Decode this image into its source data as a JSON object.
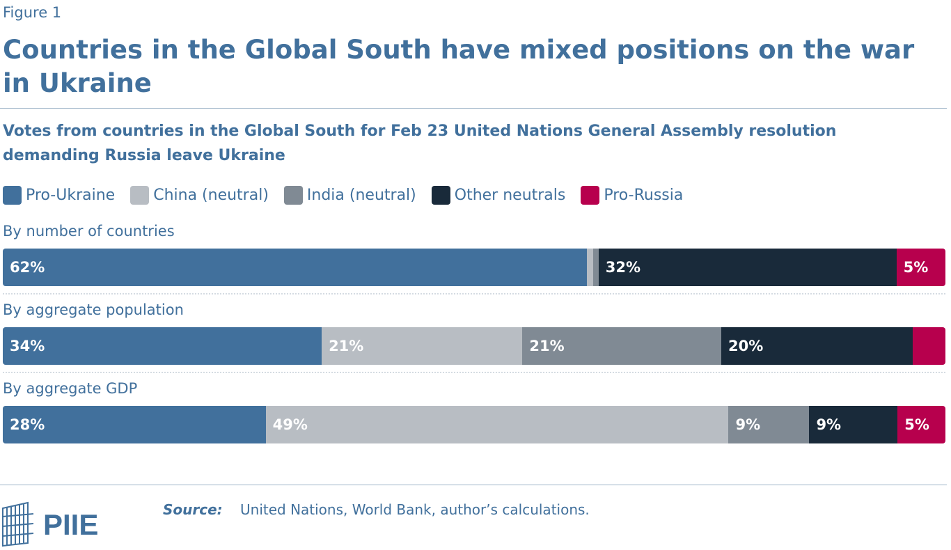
{
  "figure_label": "Figure 1",
  "chart_data": {
    "type": "bar",
    "orientation": "horizontal-stacked-100",
    "title": "Countries in the Global South have mixed positions on the war in Ukraine",
    "subtitle": "Votes from countries in the Global South for Feb 23 United Nations General Assembly resolution demanding Russia leave Ukraine",
    "legend_position": "top-left",
    "grid": false,
    "xlim": [
      0,
      100
    ],
    "categories": [
      "By number of countries",
      "By aggregate population",
      "By aggregate GDP"
    ],
    "series": [
      {
        "name": "Pro-Ukraine",
        "color": "#41709c",
        "values": [
          62,
          34,
          28
        ],
        "labels": [
          "62%",
          "34%",
          "28%"
        ]
      },
      {
        "name": "China (neutral)",
        "color": "#b8bdc3",
        "values": [
          0.6,
          21.4,
          49.3
        ],
        "labels": [
          "",
          "21%",
          "49%"
        ]
      },
      {
        "name": "India (neutral)",
        "color": "#808a94",
        "values": [
          0.6,
          21.2,
          8.6
        ],
        "labels": [
          "",
          "21%",
          "9%"
        ]
      },
      {
        "name": "Other neutrals",
        "color": "#192a3a",
        "values": [
          31.6,
          20.4,
          9.4
        ],
        "labels": [
          "32%",
          "20%",
          "9%"
        ]
      },
      {
        "name": "Pro-Russia",
        "color": "#b7004d",
        "values": [
          5.2,
          3.5,
          5.1
        ],
        "labels": [
          "5%",
          "",
          "5%"
        ]
      }
    ]
  },
  "source": {
    "key": "Source:",
    "text": "United Nations, World Bank, author’s calculations."
  },
  "logo": {
    "text": "PIIE"
  }
}
